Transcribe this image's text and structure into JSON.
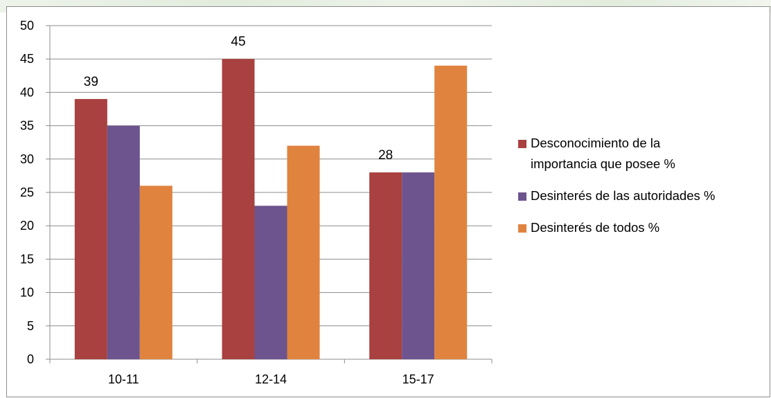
{
  "chart_data": {
    "type": "bar",
    "categories": [
      "10-11",
      "12-14",
      "15-17"
    ],
    "series": [
      {
        "name": "Desconocimiento de la importancia que posee %",
        "values": [
          39,
          45,
          28
        ],
        "color": "#a8413f"
      },
      {
        "name": "Desinterés de las autoridades %",
        "values": [
          35,
          23,
          28
        ],
        "color": "#6d548e"
      },
      {
        "name": "Desinterés de todos %",
        "values": [
          26,
          32,
          44
        ],
        "color": "#e0833f"
      }
    ],
    "data_labels": [
      {
        "series": 0,
        "category": 0,
        "text": "39"
      },
      {
        "series": 0,
        "category": 1,
        "text": "45"
      },
      {
        "series": 0,
        "category": 2,
        "text": "28"
      }
    ],
    "yticks": [
      "0",
      "5",
      "10",
      "15",
      "20",
      "25",
      "30",
      "35",
      "40",
      "45",
      "50"
    ],
    "ylim": [
      0,
      50
    ],
    "grid": true,
    "legend_position": "right",
    "title": "",
    "xlabel": "",
    "ylabel": ""
  },
  "legend": {
    "items": [
      {
        "label_line1": "Desconocimiento de la",
        "label_line2": "importancia que posee %",
        "color": "#a8413f"
      },
      {
        "label_line1": "Desinterés de las autoridades %",
        "label_line2": "",
        "color": "#6d548e"
      },
      {
        "label_line1": "Desinterés de todos %",
        "label_line2": "",
        "color": "#e0833f"
      }
    ]
  }
}
